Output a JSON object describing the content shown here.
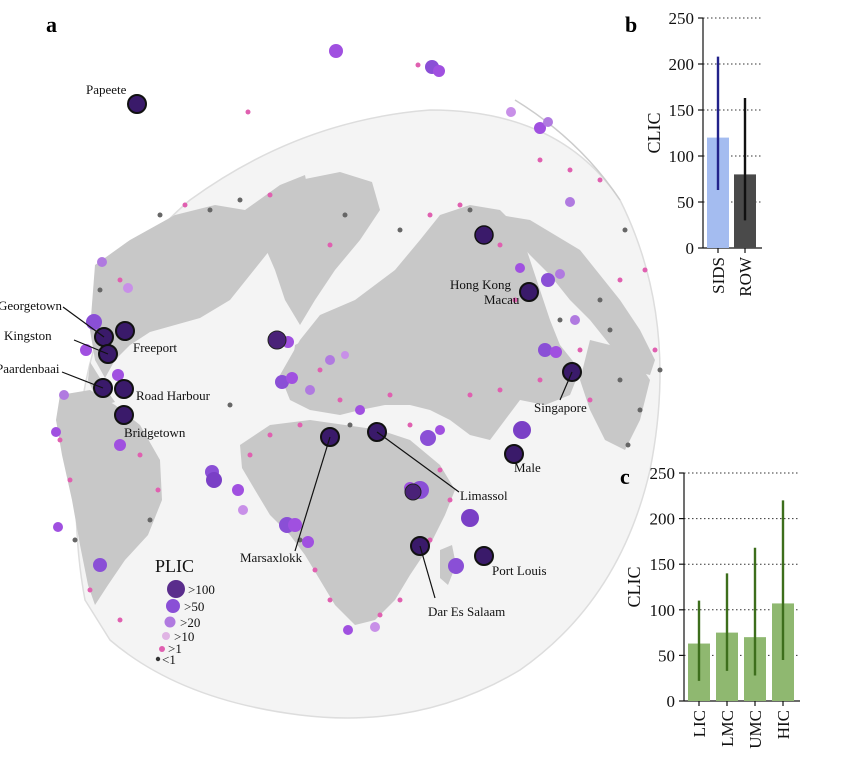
{
  "panels": {
    "a": "a",
    "b": "b",
    "c": "c"
  },
  "map": {
    "ocean_color": "#ffffff",
    "land_color": "#c8c8c8",
    "legend": {
      "title": "PLIC",
      "entries": [
        ">100",
        ">50",
        ">20",
        ">10",
        ">1",
        "<1"
      ],
      "colors": [
        "#5a2d8c",
        "#8a4fd6",
        "#b07ae0",
        "#e0b4e4",
        "#e060b0",
        "#555555"
      ]
    },
    "port_labels": [
      "Papeete",
      "Georgetown",
      "Kingston",
      "Freeport",
      "Paardenbaai",
      "Road Harbour",
      "Bridgetown",
      "Marsaxlokk",
      "Limassol",
      "Dar Es Salaam",
      "Port Louis",
      "Male",
      "Singapore",
      "Hong Kong",
      "Macau"
    ]
  },
  "chart_data": [
    {
      "panel": "b",
      "type": "bar",
      "categories": [
        "SIDS",
        "ROW"
      ],
      "values": [
        120,
        80
      ],
      "error_low": [
        63,
        30
      ],
      "error_high": [
        208,
        163
      ],
      "colors": [
        "#a4bcf0",
        "#4a4a4a"
      ],
      "error_colors": [
        "#22228a",
        "#111111"
      ],
      "ylabel": "CLIC",
      "ylim": [
        0,
        250
      ],
      "yticks": [
        0,
        50,
        100,
        150,
        200,
        250
      ],
      "grid": "dotted horizontal"
    },
    {
      "panel": "c",
      "type": "bar",
      "categories": [
        "LIC",
        "LMC",
        "UMC",
        "HIC"
      ],
      "values": [
        63,
        75,
        70,
        107
      ],
      "error_low": [
        22,
        33,
        28,
        45
      ],
      "error_high": [
        110,
        140,
        168,
        220
      ],
      "colors": [
        "#8fb870",
        "#8fb870",
        "#8fb870",
        "#8fb870"
      ],
      "error_colors": [
        "#3d6e1c",
        "#3d6e1c",
        "#3d6e1c",
        "#3d6e1c"
      ],
      "ylabel": "CLIC",
      "ylim": [
        0,
        250
      ],
      "yticks": [
        0,
        50,
        100,
        150,
        200,
        250
      ],
      "grid": "dotted horizontal"
    }
  ]
}
